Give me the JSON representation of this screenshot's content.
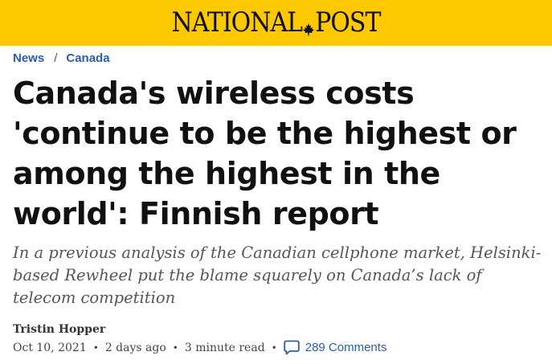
{
  "masthead": {
    "brand_left": "NATIONAL",
    "brand_right": "POST",
    "background": "#fcc800"
  },
  "breadcrumb": {
    "items": [
      {
        "label": "News"
      },
      {
        "label": "Canada"
      }
    ],
    "separator": "/"
  },
  "article": {
    "headline": "Canada's wireless costs 'continue to be the highest or among the highest in the world': Finnish report",
    "dek": "In a previous analysis of the Canadian cellphone market, Helsinki-based Rewheel put the blame squarely on Canada’s lack of telecom competition",
    "author": "Tristin Hopper",
    "date": "Oct 10, 2021",
    "relative_time": "2 days ago",
    "read_time": "3 minute read",
    "comments_label": "289 Comments",
    "comment_icon": "speech-bubble-icon",
    "dot": "•"
  },
  "colors": {
    "link": "#2a5db0",
    "headline": "#111111",
    "dek": "#555555"
  }
}
